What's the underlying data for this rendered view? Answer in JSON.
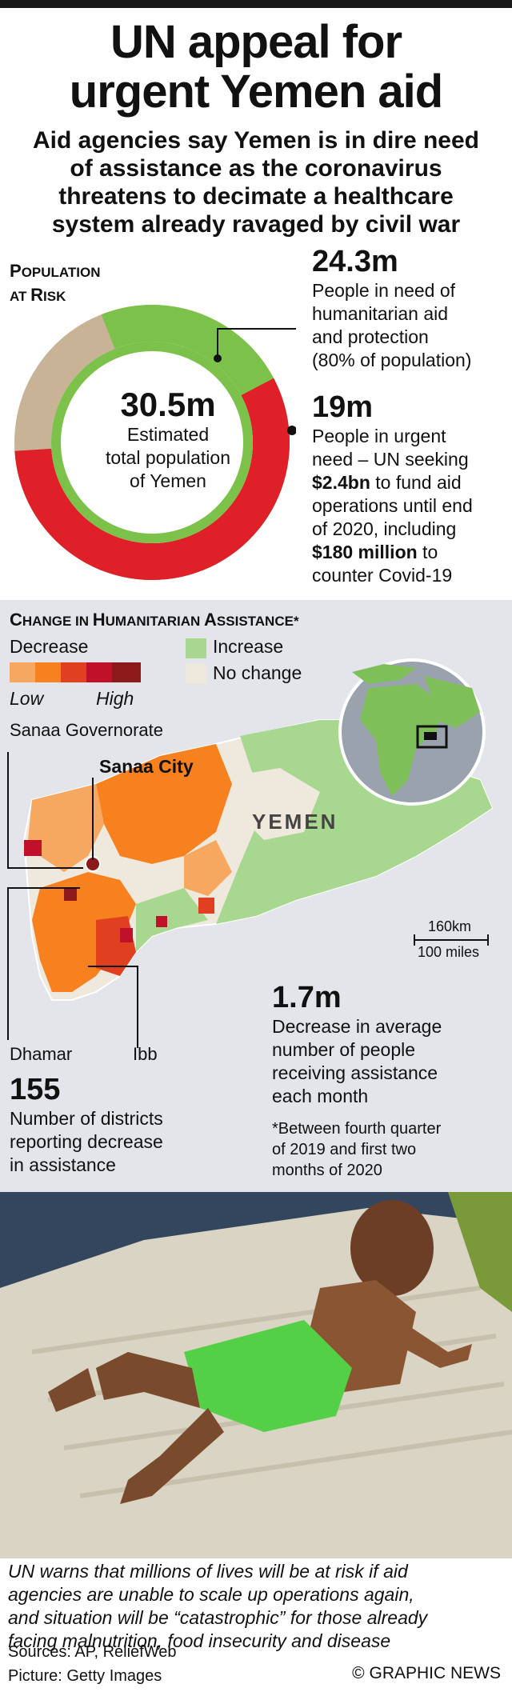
{
  "headline": {
    "line1": "UN appeal for",
    "line2": "urgent Yemen aid"
  },
  "subhead": {
    "line1": "Aid agencies say Yemen is in dire need",
    "line2": "of assistance as the coronavirus",
    "line3": "threatens to decimate a healthcare",
    "line4": "system already ravaged by civil war"
  },
  "population": {
    "label_line1_first": "P",
    "label_line1_rest": "OPULATION",
    "label_line2_first": "AT ",
    "label_line2_cap": "R",
    "label_line2_rest": "ISK",
    "center_value": "30.5m",
    "center_line1": "Estimated",
    "center_line2": "total population",
    "center_line3": "of Yemen",
    "colors": {
      "need": "#7cc24a",
      "urgent": "#e02029",
      "other": "#c8b397"
    },
    "shares": {
      "need_pct": 80,
      "urgent_pct": 62.3
    }
  },
  "stats": {
    "need": {
      "value": "24.3m",
      "line1": "People in need of",
      "line2": "humanitarian aid",
      "line3": "and protection",
      "line4": "(80% of population)"
    },
    "urgent": {
      "value": "19m",
      "line1": "People in urgent",
      "line2": "need – UN seeking",
      "line3_bold": "$2.4bn",
      "line3_rest": " to fund aid",
      "line4": "operations until end",
      "line5": "of 2020, including",
      "line6_bold": "$180 million",
      "line6_rest": " to",
      "line7": "counter Covid-19"
    }
  },
  "map": {
    "title_first": "C",
    "title_rest1": "HANGE IN ",
    "title_cap2": "H",
    "title_rest2": "UMANITARIAN ",
    "title_cap3": "A",
    "title_rest3": "SSISTANCE*",
    "decrease": "Decrease",
    "increase": "Increase",
    "no_change": "No change",
    "low": "Low",
    "high": "High",
    "colors": {
      "decrease": [
        "#f7a860",
        "#f7801f",
        "#e04020",
        "#c0102a",
        "#8c1a1a"
      ],
      "increase": "#a8d890",
      "no_change": "#efe8dc"
    },
    "sanaa_gov": "Sanaa Governorate",
    "sanaa_city": "Sanaa City",
    "country": "YEMEN",
    "scale_km": "160km",
    "scale_miles": "100 miles",
    "dhamar": "Dhamar",
    "ibb": "Ibb",
    "decrease_value": "1.7m",
    "decrease_line1": "Decrease in average",
    "decrease_line2": "number of people",
    "decrease_line3": "receiving assistance",
    "decrease_line4": "each month",
    "districts_value": "155",
    "districts_line1": "Number of districts",
    "districts_line2": "reporting decrease",
    "districts_line3": "in assistance",
    "footnote_line1": "*Between fourth quarter",
    "footnote_line2": "of 2019 and first two",
    "footnote_line3": "months of 2020"
  },
  "caption": {
    "line1": "UN warns that millions of lives will be at risk if aid",
    "line2": "agencies are unable to scale up operations again,",
    "line3": "and situation will be “catastrophic” for those already",
    "line4": "facing malnutrition, food insecurity and disease"
  },
  "credits": {
    "sources": "Sources: AP, ReliefWeb",
    "picture": "Picture: Getty Images",
    "copyright": "© GRAPHIC NEWS"
  }
}
